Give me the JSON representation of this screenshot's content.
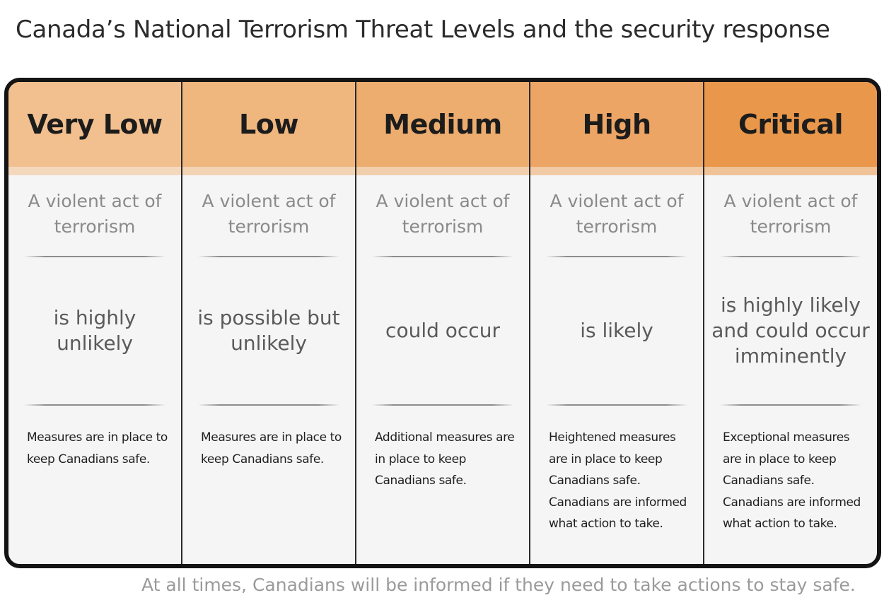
{
  "title": "Canada’s National Terrorism Threat Levels and the security response",
  "colors": {
    "very_low": "#f2c08e",
    "low": "#efb67e",
    "medium": "#edad6f",
    "high": "#eca564",
    "critical": "#e9974a",
    "frame": "#141414",
    "body": "#f5f5f6"
  },
  "levels": [
    {
      "name": "Very Low",
      "intro": "A violent act of terrorism",
      "likelihood": "is highly unlikely",
      "response": "Measures are in place to keep Canadians safe."
    },
    {
      "name": "Low",
      "intro": "A violent act of terrorism",
      "likelihood": "is possible but unlikely",
      "response": "Measures are in place to keep Canadians safe."
    },
    {
      "name": "Medium",
      "intro": "A violent act of terrorism",
      "likelihood": "could occur",
      "response": "Additional measures are in place to keep Canadians safe."
    },
    {
      "name": "High",
      "intro": "A violent act of terrorism",
      "likelihood": "is likely",
      "response": "Heightened measures are in place to keep Canadians safe. Canadians are informed what action to take."
    },
    {
      "name": "Critical",
      "intro": "A violent act of terrorism",
      "likelihood": "is highly likely and could occur imminently",
      "response": "Exceptional measures are in place to keep Canadians safe. Canadians are informed what action to take."
    }
  ],
  "footer": "At all times, Canadians will be informed if they need to take actions to stay safe."
}
